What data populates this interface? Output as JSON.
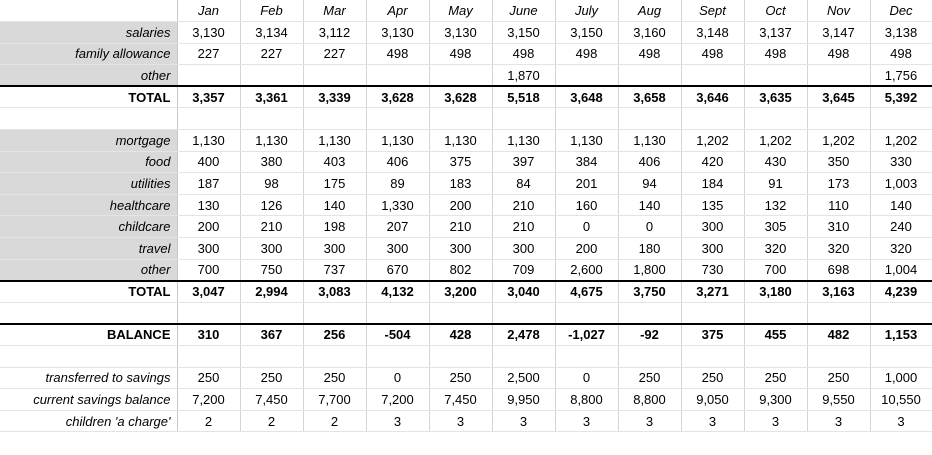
{
  "months": [
    "Jan",
    "Feb",
    "Mar",
    "Apr",
    "May",
    "June",
    "July",
    "Aug",
    "Sept",
    "Oct",
    "Nov",
    "Dec"
  ],
  "income": [
    {
      "label": "salaries",
      "values": [
        "3,130",
        "3,134",
        "3,112",
        "3,130",
        "3,130",
        "3,150",
        "3,150",
        "3,160",
        "3,148",
        "3,137",
        "3,147",
        "3,138"
      ]
    },
    {
      "label": "family allowance",
      "values": [
        "227",
        "227",
        "227",
        "498",
        "498",
        "498",
        "498",
        "498",
        "498",
        "498",
        "498",
        "498"
      ]
    },
    {
      "label": "other",
      "values": [
        "",
        "",
        "",
        "",
        "",
        "1,870",
        "",
        "",
        "",
        "",
        "",
        "1,756"
      ]
    }
  ],
  "income_total": {
    "label": "TOTAL",
    "values": [
      "3,357",
      "3,361",
      "3,339",
      "3,628",
      "3,628",
      "5,518",
      "3,648",
      "3,658",
      "3,646",
      "3,635",
      "3,645",
      "5,392"
    ]
  },
  "expenses": [
    {
      "label": "mortgage",
      "values": [
        "1,130",
        "1,130",
        "1,130",
        "1,130",
        "1,130",
        "1,130",
        "1,130",
        "1,130",
        "1,202",
        "1,202",
        "1,202",
        "1,202"
      ]
    },
    {
      "label": "food",
      "values": [
        "400",
        "380",
        "403",
        "406",
        "375",
        "397",
        "384",
        "406",
        "420",
        "430",
        "350",
        "330"
      ]
    },
    {
      "label": "utilities",
      "values": [
        "187",
        "98",
        "175",
        "89",
        "183",
        "84",
        "201",
        "94",
        "184",
        "91",
        "173",
        "1,003"
      ]
    },
    {
      "label": "healthcare",
      "values": [
        "130",
        "126",
        "140",
        "1,330",
        "200",
        "210",
        "160",
        "140",
        "135",
        "132",
        "110",
        "140"
      ]
    },
    {
      "label": "childcare",
      "values": [
        "200",
        "210",
        "198",
        "207",
        "210",
        "210",
        "0",
        "0",
        "300",
        "305",
        "310",
        "240"
      ]
    },
    {
      "label": "travel",
      "values": [
        "300",
        "300",
        "300",
        "300",
        "300",
        "300",
        "200",
        "180",
        "300",
        "320",
        "320",
        "320"
      ]
    },
    {
      "label": "other",
      "values": [
        "700",
        "750",
        "737",
        "670",
        "802",
        "709",
        "2,600",
        "1,800",
        "730",
        "700",
        "698",
        "1,004"
      ]
    }
  ],
  "expenses_total": {
    "label": "TOTAL",
    "values": [
      "3,047",
      "2,994",
      "3,083",
      "4,132",
      "3,200",
      "3,040",
      "4,675",
      "3,750",
      "3,271",
      "3,180",
      "3,163",
      "4,239"
    ]
  },
  "balance": {
    "label": "BALANCE",
    "values": [
      "310",
      "367",
      "256",
      "-504",
      "428",
      "2,478",
      "-1,027",
      "-92",
      "375",
      "455",
      "482",
      "1,153"
    ]
  },
  "savings": [
    {
      "label": "transferred to savings",
      "values": [
        "250",
        "250",
        "250",
        "0",
        "250",
        "2,500",
        "0",
        "250",
        "250",
        "250",
        "250",
        "1,000"
      ]
    },
    {
      "label": "current savings balance",
      "values": [
        "7,200",
        "7,450",
        "7,700",
        "7,200",
        "7,450",
        "9,950",
        "8,800",
        "8,800",
        "9,050",
        "9,300",
        "9,550",
        "10,550"
      ]
    },
    {
      "label": "children 'a charge'",
      "values": [
        "2",
        "2",
        "2",
        "3",
        "3",
        "3",
        "3",
        "3",
        "3",
        "3",
        "3",
        "3"
      ]
    }
  ]
}
